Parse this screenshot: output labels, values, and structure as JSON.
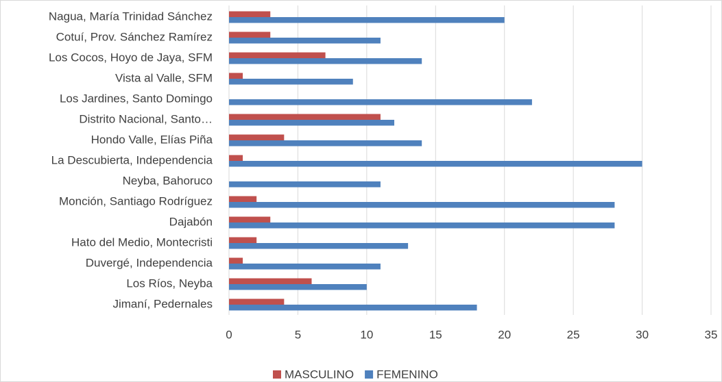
{
  "chart_data": {
    "type": "hbar",
    "categories": [
      "Nagua, María Trinidad Sánchez",
      "Cotuí, Prov. Sánchez Ramírez",
      "Los Cocos, Hoyo de Jaya, SFM",
      "Vista al Valle, SFM",
      "Los Jardines, Santo Domingo",
      "Distrito Nacional, Santo…",
      "Hondo Valle, Elías Piña",
      "La Descubierta, Independencia",
      "Neyba, Bahoruco",
      "Monción, Santiago Rodríguez",
      "Dajabón",
      "Hato del Medio, Montecristi",
      "Duvergé, Independencia",
      "Los Ríos, Neyba",
      "Jimaní, Pedernales"
    ],
    "series": [
      {
        "name": "MASCULINO",
        "color": "#c0504d",
        "values": [
          3,
          3,
          7,
          1,
          0,
          11,
          4,
          1,
          0,
          2,
          3,
          2,
          1,
          6,
          4
        ]
      },
      {
        "name": "FEMENINO",
        "color": "#4f81bd",
        "values": [
          20,
          11,
          14,
          9,
          22,
          12,
          14,
          30,
          11,
          28,
          28,
          13,
          11,
          10,
          18
        ]
      }
    ],
    "xlim": [
      0,
      35
    ],
    "xticks": [
      0,
      5,
      10,
      15,
      20,
      25,
      30,
      35
    ],
    "grid": true,
    "legend": "bottom"
  }
}
